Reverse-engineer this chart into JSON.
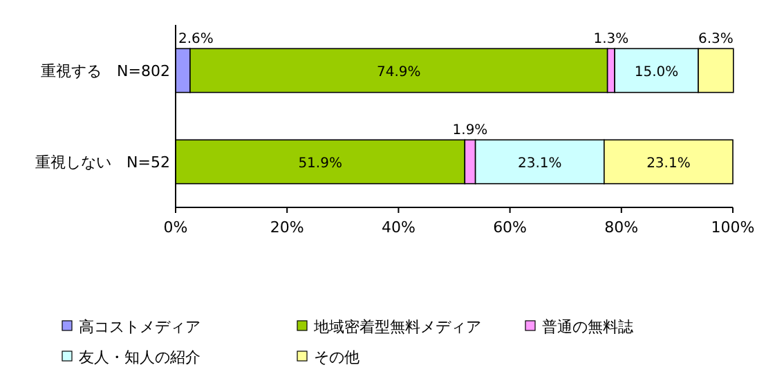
{
  "chart_data": {
    "type": "bar",
    "orientation": "horizontal",
    "stacked": true,
    "categories": [
      "重視する　N=802",
      "重視しない　N=52"
    ],
    "series": [
      {
        "name": "高コストメディア",
        "color": "#9999ff",
        "values": [
          2.6,
          0
        ],
        "value_labels": [
          "2.6%",
          null
        ]
      },
      {
        "name": "地域密着型無料メディア",
        "color": "#99cc00",
        "values": [
          74.9,
          51.9
        ],
        "value_labels": [
          "74.9%",
          "51.9%"
        ]
      },
      {
        "name": "普通の無料誌",
        "color": "#ff99ff",
        "values": [
          1.3,
          1.9
        ],
        "value_labels": [
          "1.3%",
          "1.9%"
        ]
      },
      {
        "name": "友人・知人の紹介",
        "color": "#ccffff",
        "values": [
          15.0,
          23.1
        ],
        "value_labels": [
          "15.0%",
          "23.1%"
        ]
      },
      {
        "name": "その他",
        "color": "#ffff99",
        "values": [
          6.3,
          23.1
        ],
        "value_labels": [
          "6.3%",
          "23.1%"
        ]
      }
    ],
    "xlim": [
      0,
      100
    ],
    "xticks": [
      {
        "value": 0,
        "label": "0%"
      },
      {
        "value": 20,
        "label": "20%"
      },
      {
        "value": 40,
        "label": "40%"
      },
      {
        "value": 60,
        "label": "60%"
      },
      {
        "value": 80,
        "label": "80%"
      },
      {
        "value": 100,
        "label": "100%"
      }
    ],
    "legend": "bottom",
    "grid": false
  }
}
